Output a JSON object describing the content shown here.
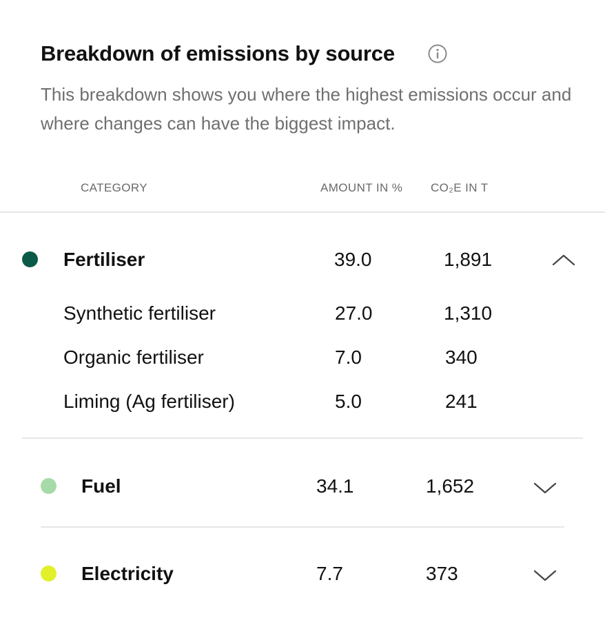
{
  "header": {
    "title": "Breakdown of emissions by source",
    "description": "This breakdown shows you where the highest emissions occur and where changes can have the biggest impact."
  },
  "icons": {
    "info": "info-icon",
    "expanded": "chevron-up-icon",
    "collapsed": "chevron-down-icon"
  },
  "table": {
    "columns": {
      "category": "CATEGORY",
      "amount": "AMOUNT IN %",
      "co2e": "CO₂E IN T"
    },
    "rows": [
      {
        "name": "Fertiliser",
        "amount": "39.0",
        "co2e": "1,891",
        "color": "#0b5a47",
        "expanded": true,
        "children": [
          {
            "name": "Synthetic fertiliser",
            "amount": "27.0",
            "co2e": "1,310"
          },
          {
            "name": "Organic fertiliser",
            "amount": "7.0",
            "co2e": "340"
          },
          {
            "name": "Liming (Ag fertiliser)",
            "amount": "5.0",
            "co2e": "241"
          }
        ]
      },
      {
        "name": "Fuel",
        "amount": "34.1",
        "co2e": "1,652",
        "color": "#a6dba9",
        "expanded": false
      },
      {
        "name": "Electricity",
        "amount": "7.7",
        "co2e": "373",
        "color": "#e2f02a",
        "expanded": false
      }
    ]
  }
}
